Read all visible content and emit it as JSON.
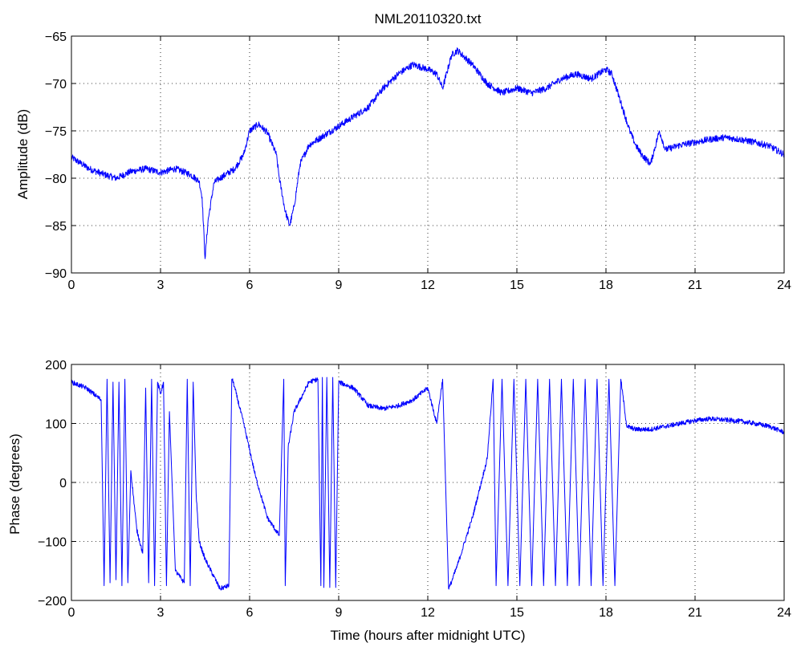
{
  "figure": {
    "background": "#ffffff",
    "line_color": "#0000ff"
  },
  "chart_data": [
    {
      "type": "line",
      "title": "NML20110320.txt",
      "xlabel": "",
      "ylabel": "Amplitude (dB)",
      "xlim": [
        0,
        24
      ],
      "ylim": [
        -90,
        -65
      ],
      "xticks": [
        0,
        3,
        6,
        9,
        12,
        15,
        18,
        21,
        24
      ],
      "yticks": [
        -90,
        -85,
        -80,
        -75,
        -70,
        -65
      ],
      "grid": true,
      "series": [
        {
          "color": "#0000ff",
          "x": [
            0,
            0.3,
            0.6,
            1.0,
            1.5,
            2.0,
            2.5,
            3.0,
            3.5,
            4.0,
            4.3,
            4.4,
            4.5,
            4.6,
            4.8,
            5.0,
            5.5,
            5.8,
            6.0,
            6.3,
            6.6,
            6.9,
            7.0,
            7.2,
            7.35,
            7.5,
            7.7,
            8.0,
            8.5,
            9.0,
            9.5,
            10.0,
            10.5,
            11.0,
            11.5,
            12.0,
            12.3,
            12.5,
            12.8,
            13.0,
            13.5,
            14.0,
            14.5,
            15.0,
            15.5,
            16.0,
            16.5,
            17.0,
            17.5,
            18.0,
            18.2,
            18.5,
            18.8,
            19.0,
            19.2,
            19.5,
            19.8,
            20.0,
            20.5,
            21.0,
            21.5,
            22.0,
            22.5,
            23.0,
            23.5,
            24.0
          ],
          "values": [
            -77.8,
            -78.4,
            -79.0,
            -79.5,
            -80.0,
            -79.3,
            -79.0,
            -79.4,
            -79.0,
            -79.6,
            -80.3,
            -82.0,
            -88.5,
            -84.5,
            -80.5,
            -80.0,
            -79.0,
            -77.5,
            -75.0,
            -74.3,
            -75.2,
            -77.5,
            -80.0,
            -83.5,
            -85.0,
            -83.0,
            -78.5,
            -76.5,
            -75.5,
            -74.5,
            -73.5,
            -72.5,
            -70.5,
            -69.0,
            -68.0,
            -68.5,
            -69.0,
            -70.5,
            -67.0,
            -66.5,
            -68.0,
            -70.0,
            -71.0,
            -70.5,
            -71.0,
            -70.5,
            -69.5,
            -69.0,
            -69.5,
            -68.5,
            -69.0,
            -72.0,
            -75.0,
            -76.5,
            -77.5,
            -78.5,
            -75.0,
            -77.0,
            -76.5,
            -76.2,
            -75.9,
            -75.7,
            -75.9,
            -76.2,
            -76.6,
            -77.5
          ],
          "noise": 0.35
        }
      ]
    },
    {
      "type": "line",
      "title": "",
      "xlabel": "Time (hours after midnight UTC)",
      "ylabel": "Phase (degrees)",
      "xlim": [
        0,
        24
      ],
      "ylim": [
        -200,
        200
      ],
      "xticks": [
        0,
        3,
        6,
        9,
        12,
        15,
        18,
        21,
        24
      ],
      "yticks": [
        -200,
        -100,
        0,
        100,
        200
      ],
      "grid": true,
      "series": [
        {
          "color": "#0000ff",
          "x": [
            0,
            0.5,
            1.0,
            1.1,
            1.2,
            1.3,
            1.4,
            1.5,
            1.6,
            1.7,
            1.8,
            1.9,
            2.0,
            2.2,
            2.4,
            2.5,
            2.6,
            2.7,
            2.8,
            2.9,
            3.0,
            3.1,
            3.2,
            3.3,
            3.5,
            3.8,
            3.9,
            4.0,
            4.1,
            4.2,
            4.3,
            4.5,
            4.8,
            5.0,
            5.3,
            5.4,
            5.45,
            5.8,
            6.2,
            6.6,
            7.0,
            7.15,
            7.2,
            7.3,
            7.5,
            8.0,
            8.3,
            8.4,
            8.45,
            8.5,
            8.6,
            8.7,
            8.8,
            8.9,
            9.0,
            9.5,
            10.0,
            10.5,
            11.0,
            11.5,
            12.0,
            12.3,
            12.5,
            12.7,
            12.75,
            13.0,
            13.5,
            14.0,
            14.2,
            14.3,
            14.5,
            14.7,
            14.9,
            15.1,
            15.3,
            15.5,
            15.7,
            15.9,
            16.1,
            16.3,
            16.5,
            16.7,
            16.9,
            17.1,
            17.3,
            17.5,
            17.7,
            17.9,
            18.1,
            18.3,
            18.5,
            18.7,
            19.0,
            19.5,
            20.0,
            20.5,
            21.0,
            21.5,
            22.0,
            22.5,
            23.0,
            23.5,
            24.0
          ],
          "values": [
            170,
            160,
            140,
            -175,
            175,
            -170,
            170,
            -165,
            170,
            -175,
            175,
            -170,
            20,
            -80,
            -120,
            160,
            -170,
            175,
            -175,
            170,
            150,
            170,
            -175,
            120,
            -150,
            -170,
            175,
            -175,
            170,
            -20,
            -100,
            -130,
            -160,
            -180,
            -175,
            175,
            170,
            100,
            10,
            -60,
            -90,
            175,
            -175,
            60,
            120,
            170,
            175,
            -175,
            178,
            -178,
            178,
            -178,
            178,
            -178,
            170,
            160,
            130,
            125,
            130,
            140,
            160,
            100,
            175,
            -180,
            -175,
            -140,
            -60,
            40,
            175,
            -175,
            175,
            -175,
            175,
            -175,
            175,
            -175,
            175,
            -175,
            175,
            -175,
            175,
            -175,
            175,
            -175,
            175,
            -175,
            175,
            -175,
            175,
            -175,
            175,
            95,
            90,
            90,
            95,
            100,
            105,
            108,
            106,
            104,
            100,
            95,
            85
          ],
          "noise": 4
        }
      ]
    }
  ]
}
